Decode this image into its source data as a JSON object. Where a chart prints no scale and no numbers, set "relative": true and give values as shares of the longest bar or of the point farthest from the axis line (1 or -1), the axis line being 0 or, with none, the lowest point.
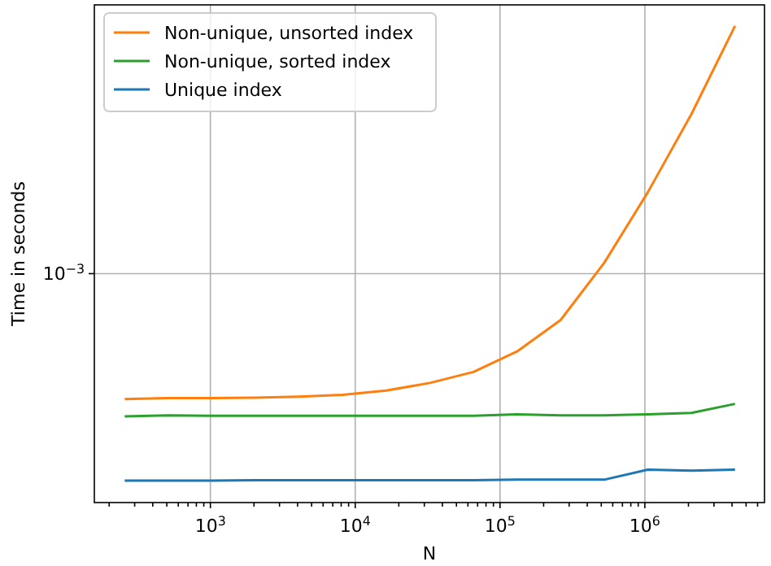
{
  "chart_data": {
    "type": "line",
    "xlabel": "N",
    "ylabel": "Time in seconds",
    "log": "x",
    "grid": "x",
    "legend": "top left",
    "line_style": "solid",
    "marker": "none",
    "relative": true,
    "x": [
      256,
      512,
      1024,
      2048,
      4096,
      8192,
      16384,
      32768,
      65536,
      131072,
      262144,
      524288,
      1048576,
      2097152,
      4194304
    ],
    "xlim": [
      158,
      6700000
    ],
    "xticks": [
      {
        "value": 200,
        "label": null
      },
      {
        "value": 300,
        "label": null
      },
      {
        "value": 400,
        "label": null
      },
      {
        "value": 500,
        "label": null
      },
      {
        "value": 600,
        "label": null
      },
      {
        "value": 700,
        "label": null
      },
      {
        "value": 800,
        "label": null
      },
      {
        "value": 900,
        "label": null
      },
      {
        "value": 1000,
        "label": "10$^{3}$"
      },
      {
        "value": 2000,
        "label": null
      },
      {
        "value": 3000,
        "label": null
      },
      {
        "value": 4000,
        "label": null
      },
      {
        "value": 5000,
        "label": null
      },
      {
        "value": 6000,
        "label": null
      },
      {
        "value": 7000,
        "label": null
      },
      {
        "value": 8000,
        "label": null
      },
      {
        "value": 9000,
        "label": null
      },
      {
        "value": 10000,
        "label": "10$^{4}$"
      },
      {
        "value": 20000,
        "label": null
      },
      {
        "value": 30000,
        "label": null
      },
      {
        "value": 40000,
        "label": null
      },
      {
        "value": 50000,
        "label": null
      },
      {
        "value": 60000,
        "label": null
      },
      {
        "value": 70000,
        "label": null
      },
      {
        "value": 80000,
        "label": null
      },
      {
        "value": 90000,
        "label": null
      },
      {
        "value": 100000,
        "label": "10$^{5}$"
      },
      {
        "value": 200000,
        "label": null
      },
      {
        "value": 300000,
        "label": null
      },
      {
        "value": 400000,
        "label": null
      },
      {
        "value": 500000,
        "label": null
      },
      {
        "value": 600000,
        "label": null
      },
      {
        "value": 700000,
        "label": null
      },
      {
        "value": 800000,
        "label": null
      },
      {
        "value": 900000,
        "label": null
      },
      {
        "value": 1000000,
        "label": "10$^{6}$"
      },
      {
        "value": 2000000,
        "label": null
      },
      {
        "value": 3000000,
        "label": null
      },
      {
        "value": 4000000,
        "label": null
      },
      {
        "value": 5000000,
        "label": null
      },
      {
        "value": 6000000,
        "label": null
      }
    ],
    "annotations": [
      "10$^{−3}$"
    ],
    "series": [
      {
        "name": "Non-unique, unsorted index",
        "color": "#ff7f0e",
        "values": [
          0.217,
          0.219,
          0.219,
          0.22,
          0.222,
          0.226,
          0.235,
          0.251,
          0.274,
          0.317,
          0.383,
          0.503,
          0.651,
          0.815,
          1
        ]
      },
      {
        "name": "Non-unique, sorted index",
        "color": "#2ca02c",
        "values": [
          0.181,
          0.183,
          0.182,
          0.182,
          0.182,
          0.182,
          0.182,
          0.182,
          0.182,
          0.185,
          0.183,
          0.183,
          0.185,
          0.188,
          0.207
        ]
      },
      {
        "name": "Unique index",
        "color": "#1f77b4",
        "values": [
          0.046,
          0.046,
          0.046,
          0.047,
          0.047,
          0.047,
          0.047,
          0.047,
          0.047,
          0.048,
          0.048,
          0.048,
          0.069,
          0.067,
          0.069
        ]
      }
    ]
  }
}
